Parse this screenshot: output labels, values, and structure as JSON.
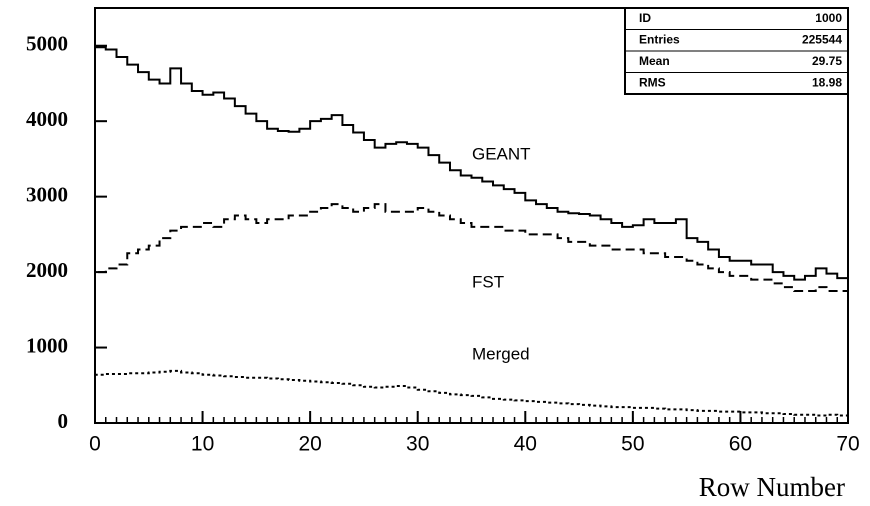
{
  "chart_data": {
    "type": "histogram",
    "xlabel": "Row Number",
    "xlim": [
      0,
      70
    ],
    "ylim": [
      0,
      5500
    ],
    "xticks": [
      0,
      10,
      20,
      30,
      40,
      50,
      60,
      70
    ],
    "yticks": [
      0,
      1000,
      2000,
      3000,
      4000,
      5000
    ],
    "bins": [
      0,
      1,
      2,
      3,
      4,
      5,
      6,
      7,
      8,
      9,
      10,
      11,
      12,
      13,
      14,
      15,
      16,
      17,
      18,
      19,
      20,
      21,
      22,
      23,
      24,
      25,
      26,
      27,
      28,
      29,
      30,
      31,
      32,
      33,
      34,
      35,
      36,
      37,
      38,
      39,
      40,
      41,
      42,
      43,
      44,
      45,
      46,
      47,
      48,
      49,
      50,
      51,
      52,
      53,
      54,
      55,
      56,
      57,
      58,
      59,
      60,
      61,
      62,
      63,
      64,
      65,
      66,
      67,
      68,
      69,
      70
    ],
    "series": [
      {
        "name": "GEANT",
        "color": "#000000",
        "linestyle": "solid",
        "values": [
          4980,
          4950,
          4850,
          4750,
          4650,
          4550,
          4500,
          4700,
          4500,
          4400,
          4350,
          4380,
          4300,
          4200,
          4100,
          4000,
          3900,
          3870,
          3860,
          3900,
          4000,
          4030,
          4080,
          3950,
          3850,
          3750,
          3650,
          3700,
          3720,
          3700,
          3650,
          3550,
          3450,
          3350,
          3280,
          3250,
          3200,
          3150,
          3100,
          3050,
          2950,
          2900,
          2850,
          2800,
          2780,
          2770,
          2750,
          2700,
          2650,
          2600,
          2620,
          2700,
          2650,
          2650,
          2700,
          2450,
          2400,
          2300,
          2200,
          2150,
          2150,
          2100,
          2100,
          2000,
          1950,
          1900,
          1950,
          2050,
          1980,
          1920
        ]
      },
      {
        "name": "FST",
        "color": "#000000",
        "linestyle": "dashed",
        "values": [
          2000,
          2050,
          2100,
          2250,
          2300,
          2350,
          2450,
          2550,
          2600,
          2600,
          2650,
          2600,
          2700,
          2750,
          2700,
          2650,
          2700,
          2700,
          2750,
          2750,
          2800,
          2850,
          2900,
          2850,
          2800,
          2850,
          2900,
          2800,
          2800,
          2800,
          2850,
          2800,
          2750,
          2700,
          2650,
          2600,
          2600,
          2600,
          2550,
          2550,
          2500,
          2500,
          2500,
          2450,
          2400,
          2400,
          2350,
          2350,
          2300,
          2300,
          2300,
          2250,
          2250,
          2200,
          2200,
          2150,
          2100,
          2050,
          2000,
          1950,
          1950,
          1900,
          1900,
          1850,
          1800,
          1750,
          1750,
          1800,
          1750,
          1750
        ]
      },
      {
        "name": "Merged",
        "color": "#000000",
        "linestyle": "dotted",
        "values": [
          640,
          650,
          650,
          660,
          660,
          670,
          680,
          690,
          670,
          660,
          640,
          630,
          620,
          610,
          600,
          600,
          590,
          580,
          570,
          560,
          550,
          540,
          530,
          520,
          500,
          480,
          470,
          480,
          490,
          470,
          440,
          420,
          400,
          380,
          370,
          360,
          340,
          320,
          310,
          300,
          290,
          280,
          270,
          260,
          250,
          240,
          230,
          220,
          210,
          210,
          200,
          200,
          190,
          180,
          180,
          170,
          160,
          160,
          150,
          150,
          140,
          140,
          130,
          130,
          120,
          110,
          110,
          100,
          110,
          100
        ]
      }
    ],
    "stats": [
      {
        "label": "ID",
        "value": 1000
      },
      {
        "label": "Entries",
        "value": 225544
      },
      {
        "label": "Mean",
        "value": 29.75
      },
      {
        "label": "RMS",
        "value": 18.98
      }
    ]
  }
}
